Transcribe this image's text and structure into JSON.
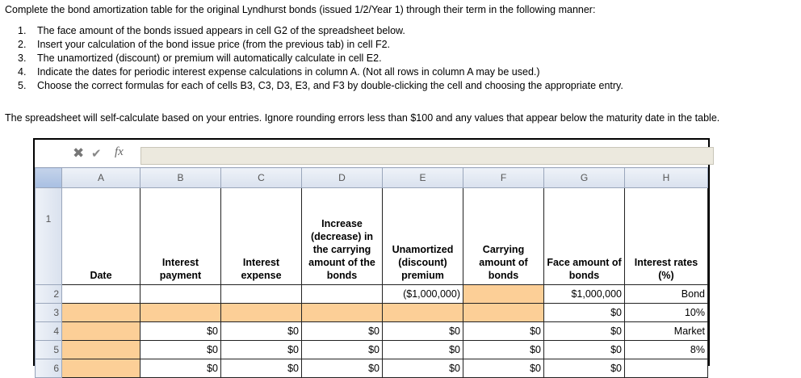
{
  "intro": "Complete the bond amortization table for the original Lyndhurst bonds (issued 1/2/Year 1) through their term in the following manner:",
  "steps": [
    {
      "n": "1.",
      "t": "The face amount of the bonds issued appears in cell G2 of the spreadsheet below."
    },
    {
      "n": "2.",
      "t": "Insert your calculation of the bond issue price (from the previous tab) in cell F2."
    },
    {
      "n": "3.",
      "t": "The unamortized (discount) or premium will automatically calculate in cell E2."
    },
    {
      "n": "4.",
      "t": "Indicate the dates for periodic interest expense calculations in column A.  (Not all rows in column A may be used.)"
    },
    {
      "n": "5.",
      "t": "Choose the correct formulas for each of cells B3, C3, D3, E3, and F3 by double-clicking the cell and choosing the appropriate entry."
    }
  ],
  "note": "The spreadsheet will self-calculate based on your entries.  Ignore rounding errors less than $100 and any values that appear below the maturity date in the table.",
  "formula_bar": {
    "cancel_icon": "x-icon",
    "confirm_icon": "check-icon",
    "fx": "fx",
    "value": ""
  },
  "columns": [
    "A",
    "B",
    "C",
    "D",
    "E",
    "F",
    "G",
    "H"
  ],
  "row_numbers": [
    "1",
    "2",
    "3",
    "4",
    "5",
    "6"
  ],
  "headers": [
    "Date",
    "Interest payment",
    "Interest expense",
    "Increase (decrease) in the carrying amount of the bonds",
    "Unamortized (discount) premium",
    "Carrying amount of bonds",
    "Face amount of bonds",
    "Interest rates (%)"
  ],
  "rows": [
    [
      "",
      "",
      "",
      "",
      "($1,000,000)",
      "",
      "$1,000,000",
      "Bond"
    ],
    [
      "",
      "",
      "",
      "",
      "",
      "",
      "$0",
      "10%"
    ],
    [
      "",
      "$0",
      "$0",
      "$0",
      "$0",
      "$0",
      "$0",
      "Market"
    ],
    [
      "",
      "$0",
      "$0",
      "$0",
      "$0",
      "$0",
      "$0",
      "8%"
    ],
    [
      "",
      "$0",
      "$0",
      "$0",
      "$0",
      "$0",
      "$0",
      ""
    ]
  ],
  "input_color": "#fccf97"
}
